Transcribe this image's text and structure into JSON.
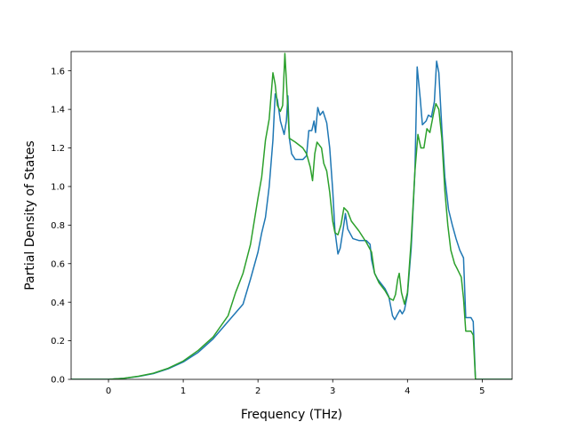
{
  "chart_data": {
    "type": "line",
    "title": "",
    "xlabel": "Frequency (THz)",
    "ylabel": "Partial Density of States",
    "xlim": [
      -0.5,
      5.4
    ],
    "ylim": [
      0.0,
      1.7
    ],
    "xticks": [
      0,
      1,
      2,
      3,
      4,
      5
    ],
    "yticks": [
      0.0,
      0.2,
      0.4,
      0.6,
      0.8,
      1.0,
      1.2,
      1.4,
      1.6
    ],
    "xtick_labels": [
      "0",
      "1",
      "2",
      "3",
      "4",
      "5"
    ],
    "ytick_labels": [
      "0.0",
      "0.2",
      "0.4",
      "0.6",
      "0.8",
      "1.0",
      "1.2",
      "1.4",
      "1.6"
    ],
    "grid": false,
    "legend": "none",
    "series": [
      {
        "color": "#1f77b4",
        "points": [
          [
            -0.5,
            0.0
          ],
          [
            0.0,
            0.0
          ],
          [
            0.2,
            0.005
          ],
          [
            0.4,
            0.015
          ],
          [
            0.6,
            0.03
          ],
          [
            0.8,
            0.055
          ],
          [
            1.0,
            0.09
          ],
          [
            1.2,
            0.14
          ],
          [
            1.4,
            0.21
          ],
          [
            1.6,
            0.3
          ],
          [
            1.8,
            0.39
          ],
          [
            1.9,
            0.52
          ],
          [
            2.0,
            0.66
          ],
          [
            2.05,
            0.76
          ],
          [
            2.1,
            0.84
          ],
          [
            2.15,
            1.0
          ],
          [
            2.2,
            1.24
          ],
          [
            2.23,
            1.48
          ],
          [
            2.26,
            1.45
          ],
          [
            2.3,
            1.34
          ],
          [
            2.35,
            1.27
          ],
          [
            2.38,
            1.34
          ],
          [
            2.4,
            1.47
          ],
          [
            2.42,
            1.25
          ],
          [
            2.45,
            1.17
          ],
          [
            2.5,
            1.14
          ],
          [
            2.6,
            1.14
          ],
          [
            2.65,
            1.16
          ],
          [
            2.68,
            1.29
          ],
          [
            2.72,
            1.29
          ],
          [
            2.75,
            1.34
          ],
          [
            2.77,
            1.28
          ],
          [
            2.8,
            1.41
          ],
          [
            2.83,
            1.37
          ],
          [
            2.87,
            1.39
          ],
          [
            2.92,
            1.33
          ],
          [
            2.96,
            1.2
          ],
          [
            3.0,
            0.98
          ],
          [
            3.03,
            0.77
          ],
          [
            3.07,
            0.65
          ],
          [
            3.1,
            0.68
          ],
          [
            3.14,
            0.78
          ],
          [
            3.17,
            0.86
          ],
          [
            3.2,
            0.78
          ],
          [
            3.27,
            0.73
          ],
          [
            3.35,
            0.72
          ],
          [
            3.45,
            0.72
          ],
          [
            3.5,
            0.7
          ],
          [
            3.52,
            0.62
          ],
          [
            3.56,
            0.55
          ],
          [
            3.6,
            0.52
          ],
          [
            3.7,
            0.47
          ],
          [
            3.75,
            0.43
          ],
          [
            3.8,
            0.33
          ],
          [
            3.83,
            0.31
          ],
          [
            3.87,
            0.34
          ],
          [
            3.9,
            0.36
          ],
          [
            3.93,
            0.34
          ],
          [
            3.96,
            0.36
          ],
          [
            4.0,
            0.44
          ],
          [
            4.05,
            0.68
          ],
          [
            4.1,
            1.08
          ],
          [
            4.13,
            1.62
          ],
          [
            4.17,
            1.46
          ],
          [
            4.2,
            1.32
          ],
          [
            4.25,
            1.34
          ],
          [
            4.28,
            1.37
          ],
          [
            4.32,
            1.36
          ],
          [
            4.36,
            1.44
          ],
          [
            4.39,
            1.65
          ],
          [
            4.42,
            1.59
          ],
          [
            4.46,
            1.3
          ],
          [
            4.5,
            1.05
          ],
          [
            4.55,
            0.88
          ],
          [
            4.6,
            0.8
          ],
          [
            4.65,
            0.73
          ],
          [
            4.7,
            0.67
          ],
          [
            4.75,
            0.63
          ],
          [
            4.78,
            0.32
          ],
          [
            4.85,
            0.32
          ],
          [
            4.88,
            0.3
          ],
          [
            4.91,
            0.0
          ],
          [
            5.4,
            0.0
          ]
        ]
      },
      {
        "color": "#2ca02c",
        "points": [
          [
            -0.5,
            0.0
          ],
          [
            0.0,
            0.0
          ],
          [
            0.2,
            0.005
          ],
          [
            0.4,
            0.016
          ],
          [
            0.6,
            0.032
          ],
          [
            0.8,
            0.058
          ],
          [
            1.0,
            0.095
          ],
          [
            1.2,
            0.15
          ],
          [
            1.4,
            0.22
          ],
          [
            1.6,
            0.33
          ],
          [
            1.7,
            0.45
          ],
          [
            1.8,
            0.55
          ],
          [
            1.9,
            0.7
          ],
          [
            2.0,
            0.94
          ],
          [
            2.05,
            1.05
          ],
          [
            2.1,
            1.24
          ],
          [
            2.15,
            1.35
          ],
          [
            2.2,
            1.59
          ],
          [
            2.23,
            1.53
          ],
          [
            2.26,
            1.42
          ],
          [
            2.3,
            1.39
          ],
          [
            2.33,
            1.42
          ],
          [
            2.36,
            1.69
          ],
          [
            2.38,
            1.55
          ],
          [
            2.42,
            1.25
          ],
          [
            2.5,
            1.23
          ],
          [
            2.6,
            1.2
          ],
          [
            2.65,
            1.17
          ],
          [
            2.7,
            1.1
          ],
          [
            2.73,
            1.03
          ],
          [
            2.76,
            1.17
          ],
          [
            2.79,
            1.23
          ],
          [
            2.85,
            1.2
          ],
          [
            2.88,
            1.12
          ],
          [
            2.92,
            1.08
          ],
          [
            2.96,
            0.97
          ],
          [
            3.0,
            0.82
          ],
          [
            3.03,
            0.76
          ],
          [
            3.07,
            0.75
          ],
          [
            3.11,
            0.8
          ],
          [
            3.15,
            0.89
          ],
          [
            3.2,
            0.87
          ],
          [
            3.25,
            0.82
          ],
          [
            3.35,
            0.77
          ],
          [
            3.45,
            0.71
          ],
          [
            3.52,
            0.66
          ],
          [
            3.56,
            0.55
          ],
          [
            3.62,
            0.5
          ],
          [
            3.7,
            0.46
          ],
          [
            3.76,
            0.42
          ],
          [
            3.81,
            0.41
          ],
          [
            3.84,
            0.44
          ],
          [
            3.87,
            0.52
          ],
          [
            3.89,
            0.55
          ],
          [
            3.92,
            0.45
          ],
          [
            3.96,
            0.39
          ],
          [
            4.0,
            0.45
          ],
          [
            4.05,
            0.72
          ],
          [
            4.1,
            1.08
          ],
          [
            4.14,
            1.27
          ],
          [
            4.18,
            1.2
          ],
          [
            4.22,
            1.2
          ],
          [
            4.26,
            1.3
          ],
          [
            4.3,
            1.28
          ],
          [
            4.35,
            1.38
          ],
          [
            4.38,
            1.43
          ],
          [
            4.42,
            1.4
          ],
          [
            4.46,
            1.25
          ],
          [
            4.5,
            0.98
          ],
          [
            4.54,
            0.8
          ],
          [
            4.58,
            0.67
          ],
          [
            4.63,
            0.6
          ],
          [
            4.67,
            0.57
          ],
          [
            4.72,
            0.53
          ],
          [
            4.75,
            0.42
          ],
          [
            4.78,
            0.25
          ],
          [
            4.85,
            0.25
          ],
          [
            4.88,
            0.23
          ],
          [
            4.91,
            0.0
          ],
          [
            5.4,
            0.0
          ]
        ]
      }
    ]
  }
}
